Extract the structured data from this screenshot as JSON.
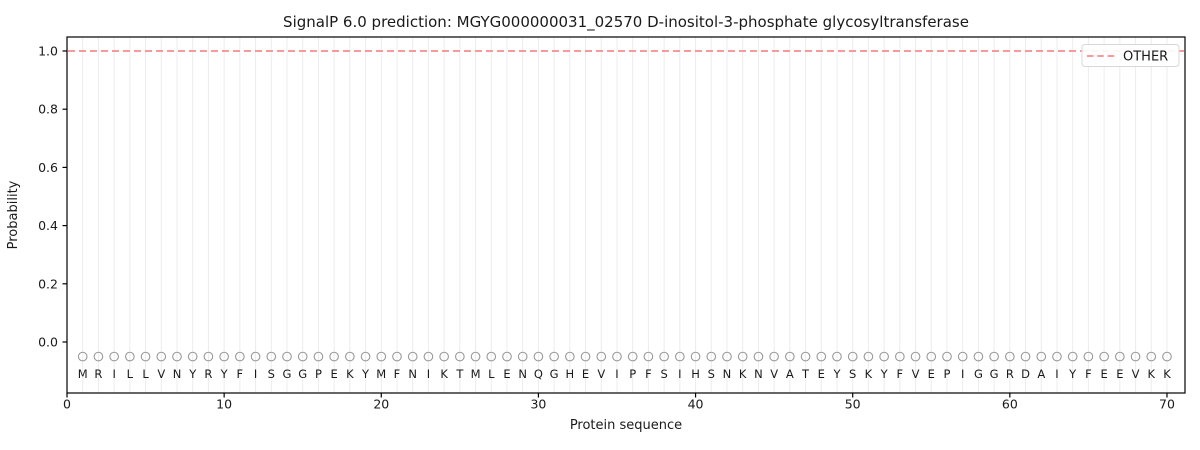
{
  "figure": {
    "title": "SignalP 6.0 prediction: MGYG000000031_02570 D-inositol-3-phosphate glycosyltransferase"
  },
  "chart_data": {
    "type": "line",
    "title": "SignalP 6.0 prediction: MGYG000000031_02570 D-inositol-3-phosphate glycosyltransferase",
    "xlabel": "Protein sequence",
    "ylabel": "Probability",
    "xlim": [
      0,
      71.2
    ],
    "ylim": [
      -0.175,
      1.05
    ],
    "x_ticks": [
      0,
      10,
      20,
      30,
      40,
      50,
      60,
      70
    ],
    "y_ticks": [
      "0.0",
      "0.2",
      "0.4",
      "0.6",
      "0.8",
      "1.0"
    ],
    "grid": {
      "vertical_line_per_residue": true,
      "color": "#ececec"
    },
    "series": [
      {
        "name": "OTHER",
        "style": "dashed",
        "color": "#f78c8c",
        "x_start": 1,
        "x_end": 70,
        "constant_value": 1.0
      }
    ],
    "legend": {
      "position": "upper-right",
      "entries": [
        {
          "label": "OTHER",
          "color": "#f78c8c",
          "style": "dashed"
        }
      ]
    },
    "sequence": "MRILLVNYRYFISGGPEKYMFNIKTMLENQGHEVIPFSIHSNKNVATEYSKYFVEPIGGRDAIYFEEVKK",
    "sequence_length": 70,
    "sequence_marker": {
      "symbol": "open-circle",
      "color": "#999999",
      "y": -0.05
    },
    "colors": {
      "spine": "#000000",
      "text": "#1a1a1a",
      "legend_border": "#d8d8d8"
    }
  }
}
